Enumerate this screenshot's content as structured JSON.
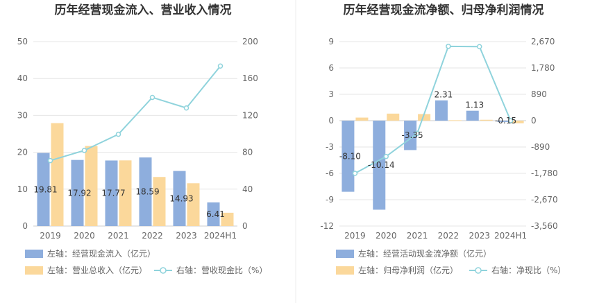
{
  "colors": {
    "bar_primary": "#8eaedd",
    "bar_secondary": "#fbd89b",
    "line": "#8fd3dc",
    "grid": "#e6e6e6",
    "axis": "#cccccc"
  },
  "chart_data": [
    {
      "type": "bar",
      "title": "历年经营现金流入、营业收入情况",
      "categories": [
        "2019",
        "2020",
        "2021",
        "2022",
        "2023",
        "2024H1"
      ],
      "y_left": {
        "ticks": [
          "0",
          "10",
          "20",
          "30",
          "40",
          "50"
        ],
        "range": [
          0,
          50
        ]
      },
      "y_right": {
        "ticks": [
          "0",
          "40",
          "80",
          "120",
          "160",
          "200"
        ],
        "range": [
          0,
          200
        ]
      },
      "series": [
        {
          "name": "左轴：经营现金流入（亿元）",
          "axis": "left",
          "kind": "bar",
          "values": [
            19.81,
            17.92,
            17.77,
            18.59,
            14.93,
            6.41
          ],
          "labels": [
            "19.81",
            "17.92",
            "17.77",
            "18.59",
            "14.93",
            "6.41"
          ]
        },
        {
          "name": "左轴：营业总收入（亿元）",
          "axis": "left",
          "kind": "bar",
          "values": [
            27.9,
            21.7,
            17.8,
            13.3,
            11.6,
            3.6
          ]
        },
        {
          "name": "右轴：营收现金比（%）",
          "axis": "right",
          "kind": "line",
          "values": [
            71,
            82,
            99.5,
            139.5,
            128,
            173.5
          ]
        }
      ],
      "legend_position": "bottom-left",
      "grid": true
    },
    {
      "type": "bar",
      "title": "历年经营现金流净额、归母净利润情况",
      "categories": [
        "2019",
        "2020",
        "2021",
        "2022",
        "2023",
        "2024H1"
      ],
      "y_left": {
        "ticks": [
          "-12",
          "-9",
          "-6",
          "-3",
          "0",
          "3",
          "6",
          "9"
        ],
        "range": [
          -12,
          9
        ]
      },
      "y_right": {
        "ticks": [
          "-3,560",
          "-2,670",
          "-1,780",
          "-890",
          "0",
          "890",
          "1,780",
          "2,670"
        ],
        "range": [
          -3560,
          2670
        ]
      },
      "series": [
        {
          "name": "左轴：经营活动现金流净额（亿元）",
          "axis": "left",
          "kind": "bar",
          "values": [
            -8.1,
            -10.14,
            -3.35,
            2.31,
            1.13,
            -0.15
          ],
          "labels": [
            "-8.10",
            "-10.14",
            "-3.35",
            "2.31",
            "1.13",
            "-0.15"
          ]
        },
        {
          "name": "左轴：归母净利润（亿元）",
          "axis": "left",
          "kind": "bar",
          "values": [
            0.35,
            0.8,
            0.75,
            0.05,
            0.1,
            -0.3
          ]
        },
        {
          "name": "右轴：净现比（%）",
          "axis": "right",
          "kind": "line",
          "values": [
            -1780,
            -1210,
            -430,
            2510,
            2500,
            0
          ]
        }
      ],
      "legend_position": "bottom-left",
      "grid": true
    }
  ]
}
